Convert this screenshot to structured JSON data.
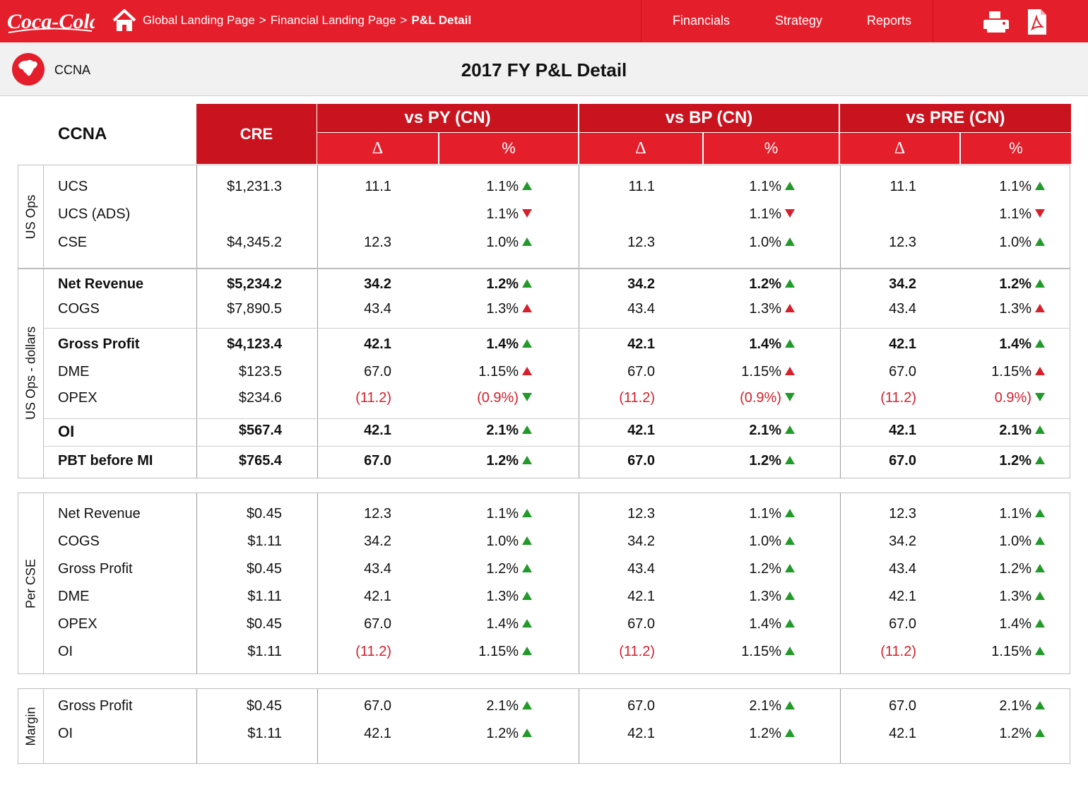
{
  "nav": {
    "logo_text": "Coca-Cola",
    "breadcrumb": [
      "Global Landing Page",
      "Financial Landing Page",
      "P&L Detail"
    ],
    "breadcrumb_sep": ">",
    "menu": [
      "Financials",
      "Strategy",
      "Reports"
    ]
  },
  "header": {
    "region": "CCNA",
    "title": "2017 FY P&L Detail"
  },
  "table": {
    "corner": "CCNA",
    "cre": "CRE",
    "groups": [
      "vs PY (CN)",
      "vs BP (CN)",
      "vs PRE (CN)"
    ],
    "sub": [
      "Δ",
      "%"
    ]
  },
  "sections": [
    {
      "label": "US Ops",
      "rows": [
        {
          "label": "UCS",
          "cre": "$1,231.3",
          "cells": [
            [
              "11.1",
              "1.1%",
              "up-g"
            ],
            [
              "11.1",
              "1.1%",
              "up-g"
            ],
            [
              "11.1",
              "1.1%",
              "up-g"
            ]
          ]
        },
        {
          "label": "UCS (ADS)",
          "cre": "",
          "cells": [
            [
              "",
              "1.1%",
              "dn-r"
            ],
            [
              "",
              "1.1%",
              "dn-r"
            ],
            [
              "",
              "1.1%",
              "dn-r"
            ]
          ]
        },
        {
          "label": "CSE",
          "cre": "$4,345.2",
          "cells": [
            [
              "12.3",
              "1.0%",
              "up-g"
            ],
            [
              "12.3",
              "1.0%",
              "up-g"
            ],
            [
              "12.3",
              "1.0%",
              "up-g"
            ]
          ]
        }
      ]
    },
    {
      "label": "US Ops - dollars",
      "rows": [
        {
          "label": "Net Revenue",
          "bold": true,
          "cre": "$5,234.2",
          "cells": [
            [
              "34.2",
              "1.2%",
              "up-g"
            ],
            [
              "34.2",
              "1.2%",
              "up-g"
            ],
            [
              "34.2",
              "1.2%",
              "up-g"
            ]
          ]
        },
        {
          "label": "COGS",
          "cre": "$7,890.5",
          "cells": [
            [
              "43.4",
              "1.3%",
              "up-r"
            ],
            [
              "43.4",
              "1.3%",
              "up-r"
            ],
            [
              "43.4",
              "1.3%",
              "up-r"
            ]
          ]
        },
        {
          "label": "Gross Profit",
          "bold": true,
          "cre": "$4,123.4",
          "cells": [
            [
              "42.1",
              "1.4%",
              "up-g"
            ],
            [
              "42.1",
              "1.4%",
              "up-g"
            ],
            [
              "42.1",
              "1.4%",
              "up-g"
            ]
          ]
        },
        {
          "label": "DME",
          "cre": "$123.5",
          "cells": [
            [
              "67.0",
              "1.15%",
              "up-r"
            ],
            [
              "67.0",
              "1.15%",
              "up-r"
            ],
            [
              "67.0",
              "1.15%",
              "up-r"
            ]
          ]
        },
        {
          "label": "OPEX",
          "cre": "$234.6",
          "neg": true,
          "cells": [
            [
              "(11.2)",
              "(0.9%)",
              "dn-g"
            ],
            [
              "(11.2)",
              "(0.9%)",
              "dn-g"
            ],
            [
              "(11.2)",
              "0.9%)",
              "dn-g"
            ]
          ]
        },
        {
          "label": "OI",
          "bold": true,
          "big": true,
          "cre": "$567.4",
          "cells": [
            [
              "42.1",
              "2.1%",
              "up-g"
            ],
            [
              "42.1",
              "2.1%",
              "up-g"
            ],
            [
              "42.1",
              "2.1%",
              "up-g"
            ]
          ]
        },
        {
          "label": "PBT before MI",
          "bold": true,
          "cre": "$765.4",
          "cells": [
            [
              "67.0",
              "1.2%",
              "up-g"
            ],
            [
              "67.0",
              "1.2%",
              "up-g"
            ],
            [
              "67.0",
              "1.2%",
              "up-g"
            ]
          ]
        }
      ]
    },
    {
      "label": "Per CSE",
      "rows": [
        {
          "label": "Net Revenue",
          "cre": "$0.45",
          "cells": [
            [
              "12.3",
              "1.1%",
              "up-g"
            ],
            [
              "12.3",
              "1.1%",
              "up-g"
            ],
            [
              "12.3",
              "1.1%",
              "up-g"
            ]
          ]
        },
        {
          "label": "COGS",
          "cre": "$1.11",
          "cells": [
            [
              "34.2",
              "1.0%",
              "up-g"
            ],
            [
              "34.2",
              "1.0%",
              "up-g"
            ],
            [
              "34.2",
              "1.0%",
              "up-g"
            ]
          ]
        },
        {
          "label": "Gross Profit",
          "cre": "$0.45",
          "cells": [
            [
              "43.4",
              "1.2%",
              "up-g"
            ],
            [
              "43.4",
              "1.2%",
              "up-g"
            ],
            [
              "43.4",
              "1.2%",
              "up-g"
            ]
          ]
        },
        {
          "label": "DME",
          "cre": "$1.11",
          "cells": [
            [
              "42.1",
              "1.3%",
              "up-g"
            ],
            [
              "42.1",
              "1.3%",
              "up-g"
            ],
            [
              "42.1",
              "1.3%",
              "up-g"
            ]
          ]
        },
        {
          "label": "OPEX",
          "cre": "$0.45",
          "cells": [
            [
              "67.0",
              "1.4%",
              "up-g"
            ],
            [
              "67.0",
              "1.4%",
              "up-g"
            ],
            [
              "67.0",
              "1.4%",
              "up-g"
            ]
          ]
        },
        {
          "label": "OI",
          "cre": "$1.11",
          "negDelta": true,
          "cells": [
            [
              "(11.2)",
              "1.15%",
              "up-g"
            ],
            [
              "(11.2)",
              "1.15%",
              "up-g"
            ],
            [
              "(11.2)",
              "1.15%",
              "up-g"
            ]
          ]
        }
      ]
    },
    {
      "label": "Margin",
      "rows": [
        {
          "label": "Gross Profit",
          "cre": "$0.45",
          "cells": [
            [
              "67.0",
              "2.1%",
              "up-g"
            ],
            [
              "67.0",
              "2.1%",
              "up-g"
            ],
            [
              "67.0",
              "2.1%",
              "up-g"
            ]
          ]
        },
        {
          "label": "OI",
          "cre": "$1.11",
          "cells": [
            [
              "42.1",
              "1.2%",
              "up-g"
            ],
            [
              "42.1",
              "1.2%",
              "up-g"
            ],
            [
              "42.1",
              "1.2%",
              "up-g"
            ]
          ]
        }
      ]
    }
  ],
  "colors": {
    "brand_red": "#e41e2b",
    "dark_red": "#c9141f",
    "up_green": "#229a2a",
    "neg_red": "#d6202c"
  }
}
